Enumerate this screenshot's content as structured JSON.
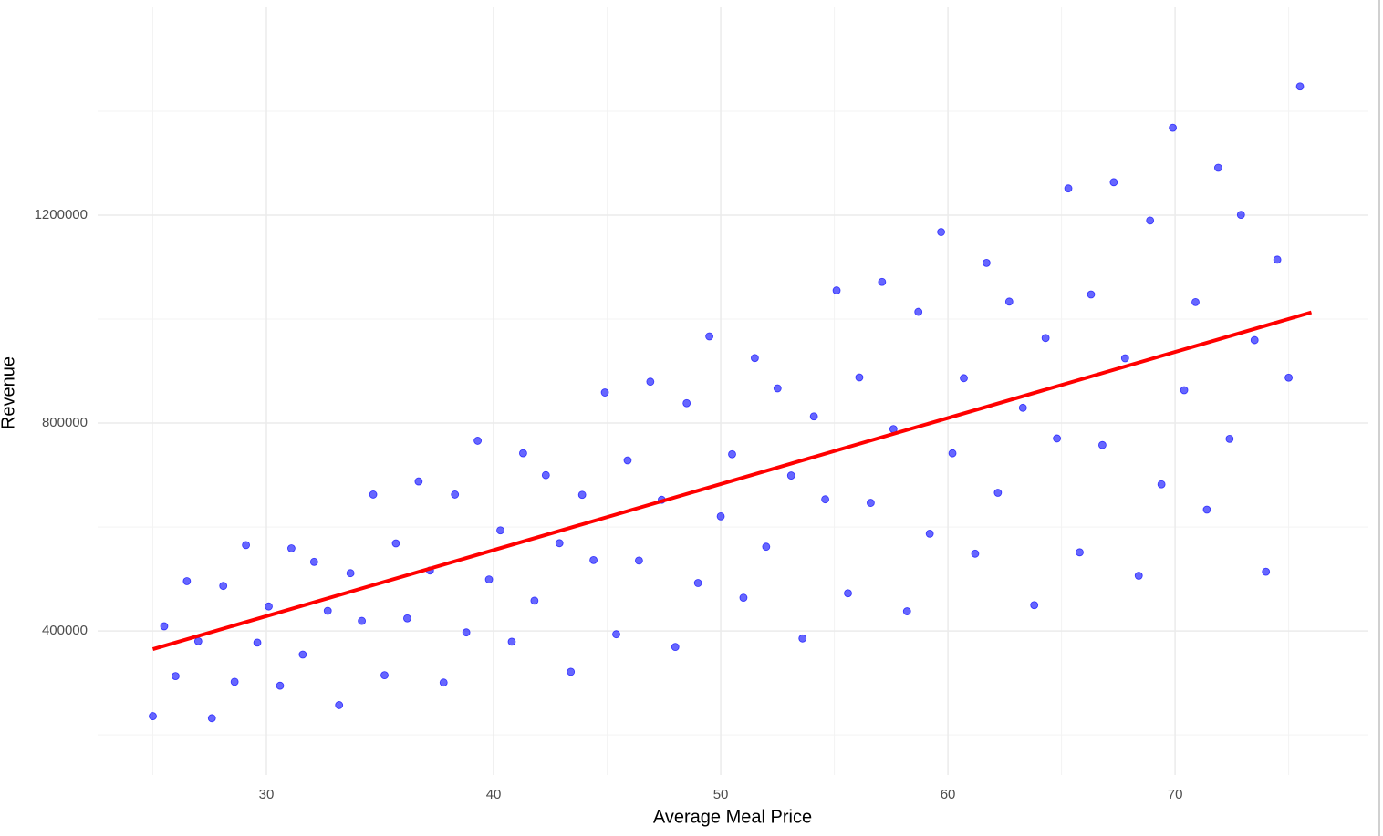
{
  "chart_data": {
    "type": "scatter",
    "x_label": "Average Meal Price",
    "y_label": "Revenue",
    "xlim": [
      22.57,
      78.51
    ],
    "ylim": [
      123000,
      1600000
    ],
    "xticks": [
      30,
      40,
      50,
      60,
      70
    ],
    "yticks": [
      400000,
      800000,
      1200000
    ],
    "x_minor_ticks": [
      25,
      35,
      45,
      55,
      65,
      75
    ],
    "y_minor_ticks": [
      200000,
      600000,
      1000000,
      1400000
    ],
    "grid": true,
    "series": [
      {
        "color": "#0000ff",
        "x": [
          25.0,
          25.5,
          26.0,
          26.5,
          27.0,
          27.6,
          28.1,
          28.6,
          29.1,
          29.6,
          30.1,
          30.6,
          31.1,
          31.6,
          32.1,
          32.7,
          33.2,
          33.7,
          34.2,
          34.7,
          35.2,
          35.7,
          36.2,
          36.7,
          37.2,
          37.8,
          38.3,
          38.8,
          39.3,
          39.8,
          40.3,
          40.8,
          41.3,
          41.8,
          42.3,
          42.9,
          43.4,
          43.9,
          44.4,
          44.9,
          45.4,
          45.9,
          46.4,
          46.9,
          47.4,
          48.0,
          48.5,
          49.0,
          49.5,
          50.0,
          50.5,
          51.0,
          51.5,
          52.0,
          52.5,
          53.1,
          53.6,
          54.1,
          54.6,
          55.1,
          55.6,
          56.1,
          56.6,
          57.1,
          57.6,
          58.2,
          58.7,
          59.2,
          59.7,
          60.2,
          60.7,
          61.2,
          61.7,
          62.2,
          62.7,
          63.3,
          63.8,
          64.3,
          64.8,
          65.3,
          65.8,
          66.3,
          66.8,
          67.3,
          67.8,
          68.4,
          68.9,
          69.4,
          69.9,
          70.4,
          70.9,
          71.4,
          71.9,
          72.4,
          72.9,
          73.5,
          74.0,
          74.5,
          75.0,
          75.5
        ],
        "values": [
          236000,
          409000,
          313100,
          495800,
          380200,
          232100,
          486700,
          302200,
          565300,
          377600,
          447200,
          294600,
          558900,
          354500,
          532900,
          438700,
          257300,
          511200,
          419300,
          662500,
          314800,
          568600,
          424300,
          687700,
          516300,
          300700,
          662500,
          397200,
          766000,
          499100,
          593600,
          379300,
          742000,
          458300,
          699800,
          568900,
          321400,
          662000,
          536300,
          858800,
          393700,
          728200,
          535400,
          879600,
          652400,
          369200,
          838300,
          492200,
          966800,
          620500,
          740000,
          464000,
          925100,
          562100,
          866800,
          699100,
          385600,
          812800,
          653300,
          1055200,
          472500,
          887800,
          646500,
          1071600,
          788500,
          437800,
          1014000,
          587200,
          1167500,
          741900,
          886400,
          548700,
          1108200,
          665900,
          1033700,
          829400,
          449700,
          963600,
          770400,
          1251500,
          551300,
          1047400,
          757700,
          1263500,
          924700,
          506300,
          1189800,
          682200,
          1368200,
          863300,
          1032800,
          633400,
          1291300,
          769600,
          1200700,
          959600,
          513900,
          1114400,
          887400,
          1447800
        ]
      }
    ],
    "fit_line": {
      "x": [
        25,
        76
      ],
      "values": [
        365000,
        1013000
      ],
      "color": "#ff0000"
    }
  }
}
